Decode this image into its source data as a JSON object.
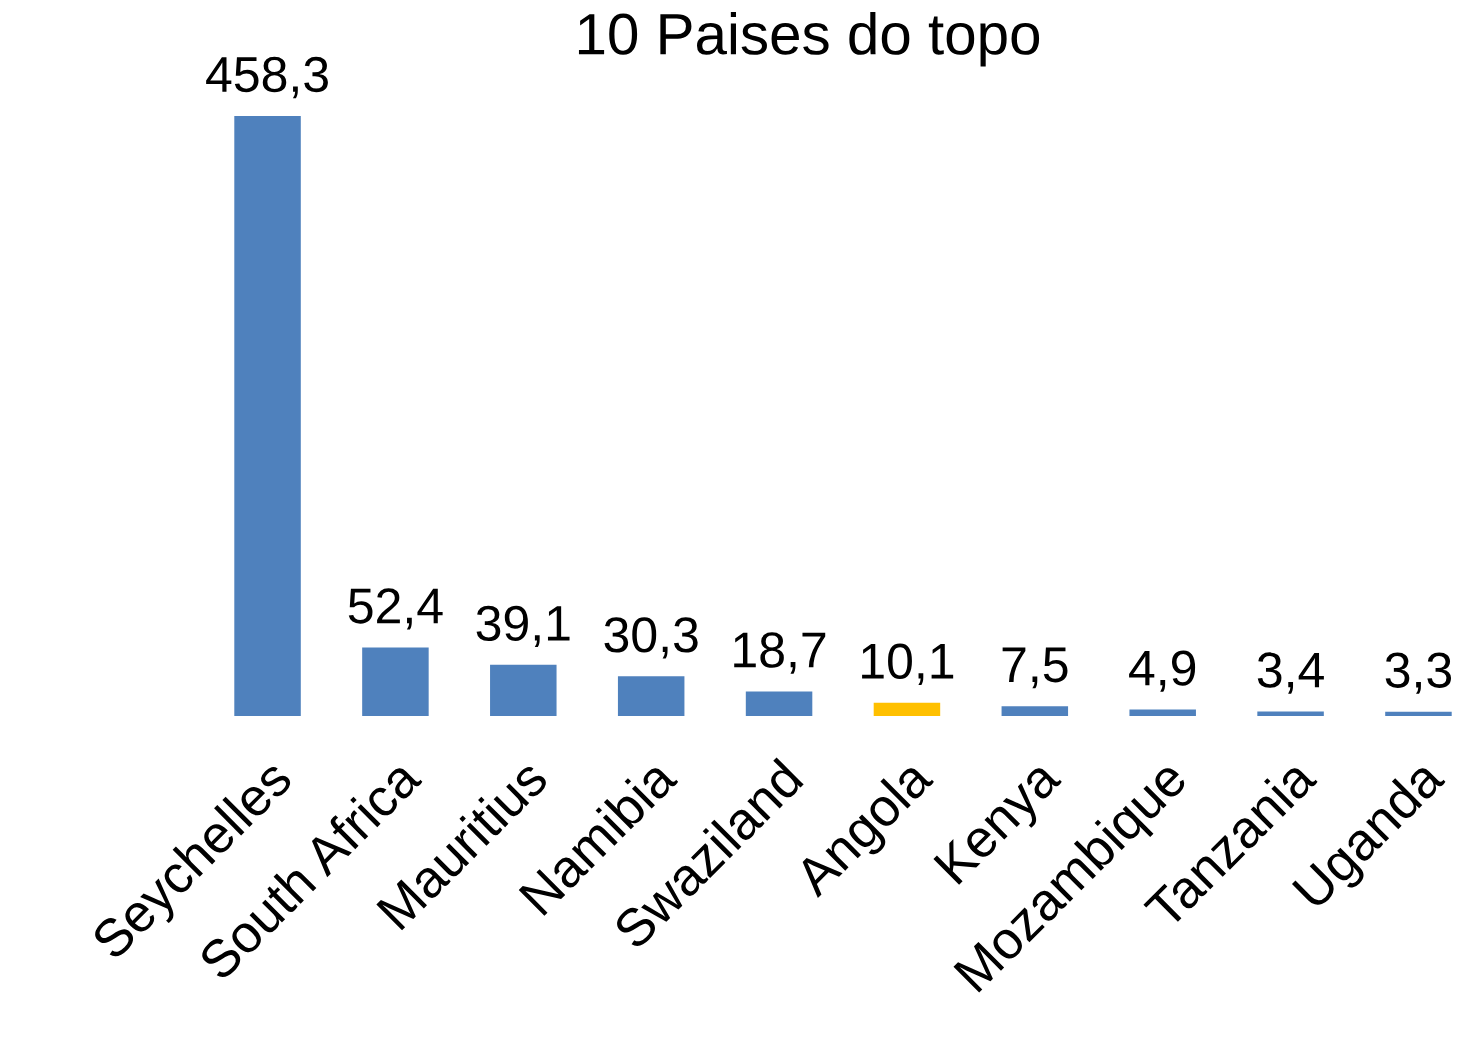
{
  "chart_data": {
    "type": "bar",
    "title": "10 Paises do topo",
    "categories": [
      "Seychelles",
      "South Africa",
      "Mauritius",
      "Namibia",
      "Swaziland",
      "Angola",
      "Kenya",
      "Mozambique",
      "Tanzania",
      "Uganda"
    ],
    "values": [
      458.3,
      52.4,
      39.1,
      30.3,
      18.7,
      10.1,
      7.5,
      4.9,
      3.4,
      3.3
    ],
    "value_labels": [
      "458,3",
      "52,4",
      "39,1",
      "30,3",
      "18,7",
      "10,1",
      "7,5",
      "4,9",
      "3,4",
      "3,3"
    ],
    "colors": [
      "#4f81bd",
      "#4f81bd",
      "#4f81bd",
      "#4f81bd",
      "#4f81bd",
      "#ffc000",
      "#4f81bd",
      "#4f81bd",
      "#4f81bd",
      "#4f81bd"
    ],
    "tick_labels": "x",
    "grid": false
  }
}
